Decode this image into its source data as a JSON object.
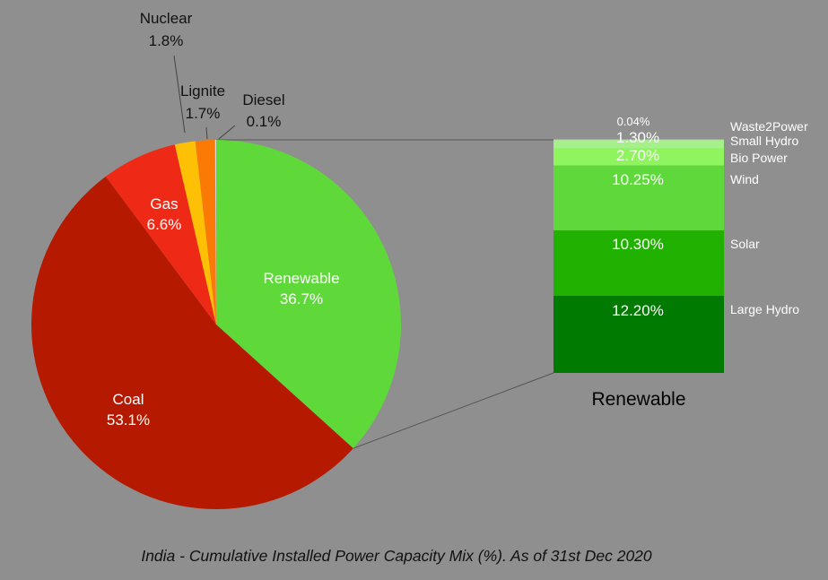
{
  "chart_data": {
    "title": "India - Cumulative Installed Power Capacity Mix (%). As of 31st Dec 2020",
    "pie": {
      "type": "pie",
      "slices": [
        {
          "label": "Renewable",
          "value": 36.7,
          "display": "36.7%",
          "color": "#5fd83a",
          "label_color": "#ffffff"
        },
        {
          "label": "Coal",
          "value": 53.1,
          "display": "53.1%",
          "color": "#b51a00",
          "label_color": "#ffffff"
        },
        {
          "label": "Gas",
          "value": 6.6,
          "display": "6.6%",
          "color": "#ee2a17",
          "label_color": "#ffffff"
        },
        {
          "label": "Nuclear",
          "value": 1.8,
          "display": "1.8%",
          "color": "#fec005",
          "label_color": "#111111"
        },
        {
          "label": "Lignite",
          "value": 1.7,
          "display": "1.7%",
          "color": "#fb7a06",
          "label_color": "#111111"
        },
        {
          "label": "Diesel",
          "value": 0.1,
          "display": "0.1%",
          "color": "#d9d9d9",
          "label_color": "#111111"
        }
      ]
    },
    "bar": {
      "type": "bar",
      "stacked": true,
      "category": "Renewable",
      "segments": [
        {
          "label": "Large Hydro",
          "value": 12.2,
          "display": "12.20%",
          "color": "#007a00"
        },
        {
          "label": "Solar",
          "value": 10.3,
          "display": "10.30%",
          "color": "#21b100"
        },
        {
          "label": "Wind",
          "value": 10.25,
          "display": "10.25%",
          "color": "#5ed83a"
        },
        {
          "label": "Bio Power",
          "value": 2.7,
          "display": "2.70%",
          "color": "#8ff55e"
        },
        {
          "label": "Small Hydro",
          "value": 1.3,
          "display": "1.30%",
          "color": "#a6f08c"
        },
        {
          "label": "Waste2Power",
          "value": 0.04,
          "display": "0.04%",
          "color": "#c7f2b5"
        }
      ]
    }
  }
}
